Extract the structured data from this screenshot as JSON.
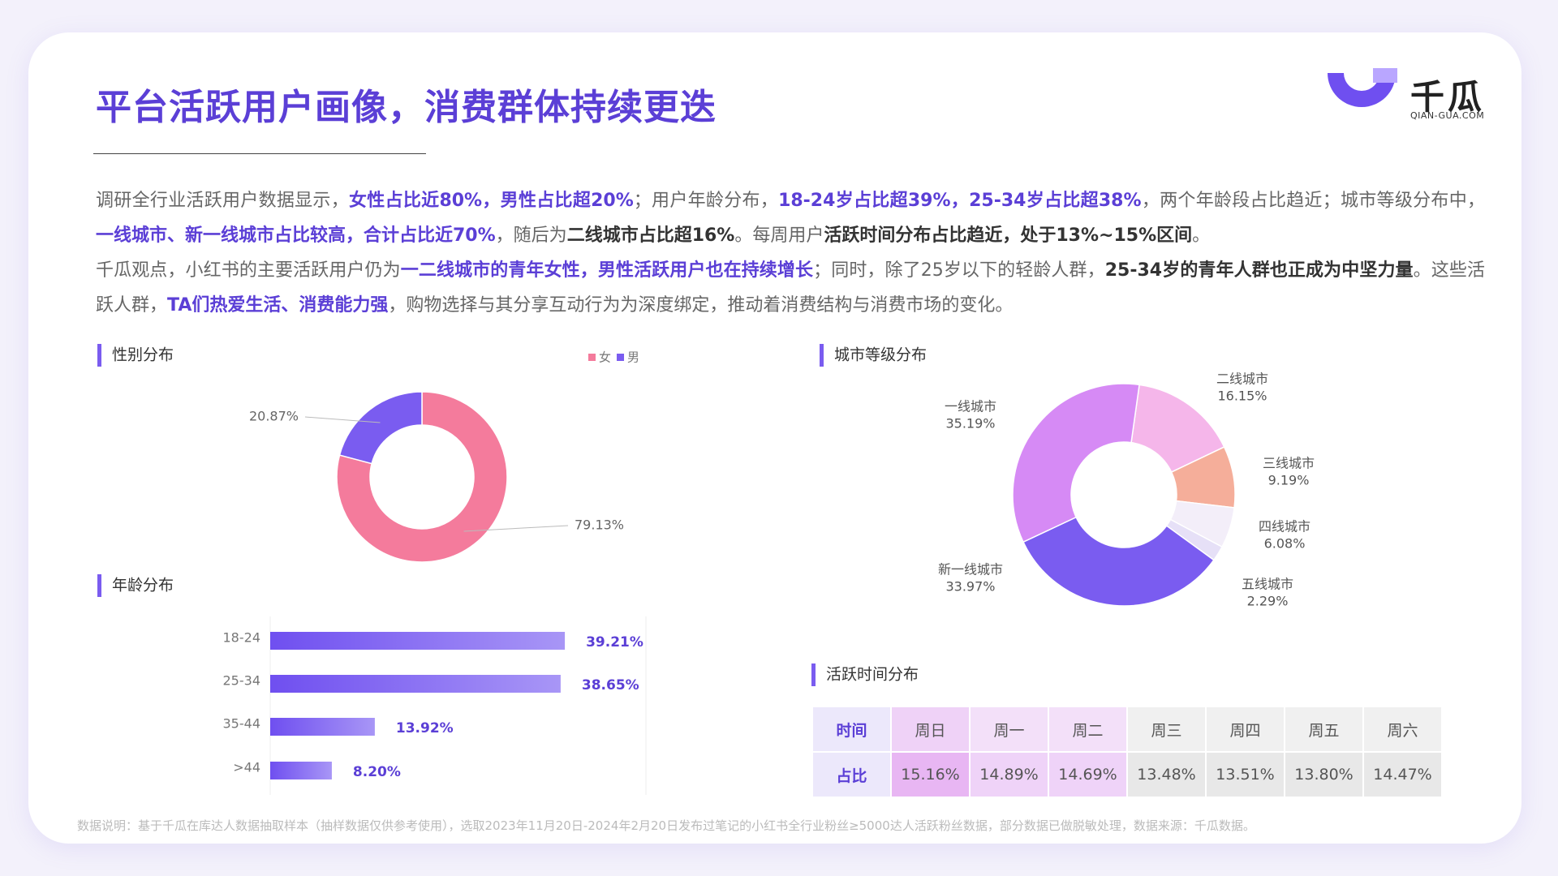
{
  "header": {
    "title": "平台活跃用户画像，消费群体持续更迭",
    "logo_name": "千瓜",
    "logo_url": "QIAN-GUA.COM"
  },
  "paragraphs": [
    [
      {
        "text": "调研全行业活跃用户数据显示，"
      },
      {
        "text": "女性占比近80%，男性占比超20%",
        "style": "accent"
      },
      {
        "text": "；用户年龄分布，"
      },
      {
        "text": "18-24岁占比超39%，25-34岁占比超38%",
        "style": "accent"
      },
      {
        "text": "，两个年龄段占比趋近；城市等级分布中，"
      },
      {
        "text": "一线城市、新一线城市占比较高，合计占比近70%",
        "style": "accent"
      },
      {
        "text": "，随后为"
      },
      {
        "text": "二线城市占比超16%",
        "style": "bold"
      },
      {
        "text": "。每周用户"
      },
      {
        "text": "活跃时间分布占比趋近，处于13%~15%区间",
        "style": "bold"
      },
      {
        "text": "。"
      }
    ],
    [
      {
        "text": "千瓜观点，小红书的主要活跃用户仍为"
      },
      {
        "text": "一二线城市的青年女性，男性活跃用户也在持续增长",
        "style": "accent"
      },
      {
        "text": "；同时，除了25岁以下的轻龄人群，"
      },
      {
        "text": "25-34岁的青年人群也正成为中坚力量",
        "style": "bold"
      },
      {
        "text": "。这些活跃人群，"
      },
      {
        "text": "TA们热爱生活、消费能力强",
        "style": "accent"
      },
      {
        "text": "，购物选择与其分享互动行为为深度绑定，推动着消费结构与消费市场的变化。"
      }
    ]
  ],
  "chart_data": [
    {
      "type": "pie",
      "donut": true,
      "title": "性别分布",
      "categories": [
        "女",
        "男"
      ],
      "values": [
        79.13,
        20.87
      ],
      "value_labels": [
        "79.13%",
        "20.87%"
      ],
      "colors": [
        "#f47b9c",
        "#7a5cf0"
      ],
      "legend": "top-right"
    },
    {
      "type": "bar",
      "orientation": "horizontal",
      "title": "年龄分布",
      "categories": [
        "18-24",
        "25-34",
        "35-44",
        ">44"
      ],
      "values": [
        39.21,
        38.65,
        13.92,
        8.2
      ],
      "value_labels": [
        "39.21%",
        "38.65%",
        "13.92%",
        "8.20%"
      ],
      "color": "#6f4ff0",
      "xlim": [
        0,
        50
      ]
    },
    {
      "type": "pie",
      "donut": true,
      "title": "城市等级分布",
      "categories": [
        "二线城市",
        "三线城市",
        "四线城市",
        "五线城市",
        "新一线城市",
        "一线城市"
      ],
      "values": [
        16.15,
        9.19,
        6.08,
        2.29,
        33.97,
        35.19
      ],
      "value_labels": [
        "16.15%",
        "9.19%",
        "6.08%",
        "2.29%",
        "33.97%",
        "35.19%"
      ],
      "colors": [
        "#f5b6ea",
        "#f5ae9a",
        "#f3eef9",
        "#e6e0f7",
        "#7a5cf0",
        "#d68af5"
      ]
    }
  ],
  "table": {
    "title": "活跃时间分布",
    "header": [
      "时间",
      "周日",
      "周一",
      "周二",
      "周三",
      "周四",
      "周五",
      "周六"
    ],
    "rows": [
      [
        "占比",
        "15.16%",
        "14.89%",
        "14.69%",
        "13.48%",
        "13.51%",
        "13.80%",
        "14.47%"
      ]
    ]
  },
  "footnote": "数据说明：基于千瓜在库达人数据抽取样本（抽样数据仅供参考使用），选取2023年11月20日-2024年2月20日发布过笔记的小红书全行业粉丝≥5000达人活跃粉丝数据，部分数据已做脱敏处理，数据来源：千瓜数据。"
}
